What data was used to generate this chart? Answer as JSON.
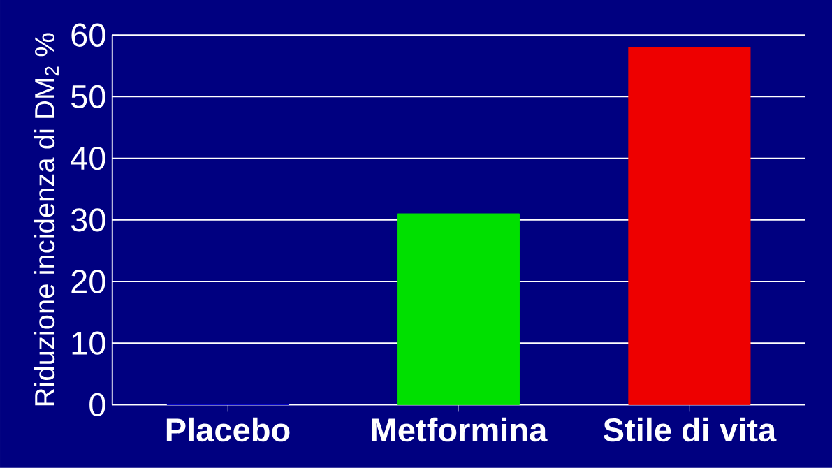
{
  "chart_data": {
    "type": "bar",
    "ylabel": "Riduzione incidenza di DM$_{2}$ %",
    "categories": [
      "Placebo",
      "Metformina",
      "Stile di vita"
    ],
    "values": [
      0,
      31,
      58
    ],
    "colors": [
      "#0000c8",
      "#00e000",
      "#ee0000"
    ],
    "ylim": [
      0,
      60
    ],
    "yticks": [
      0,
      10,
      20,
      30,
      40,
      50,
      60
    ],
    "grid": "y"
  }
}
